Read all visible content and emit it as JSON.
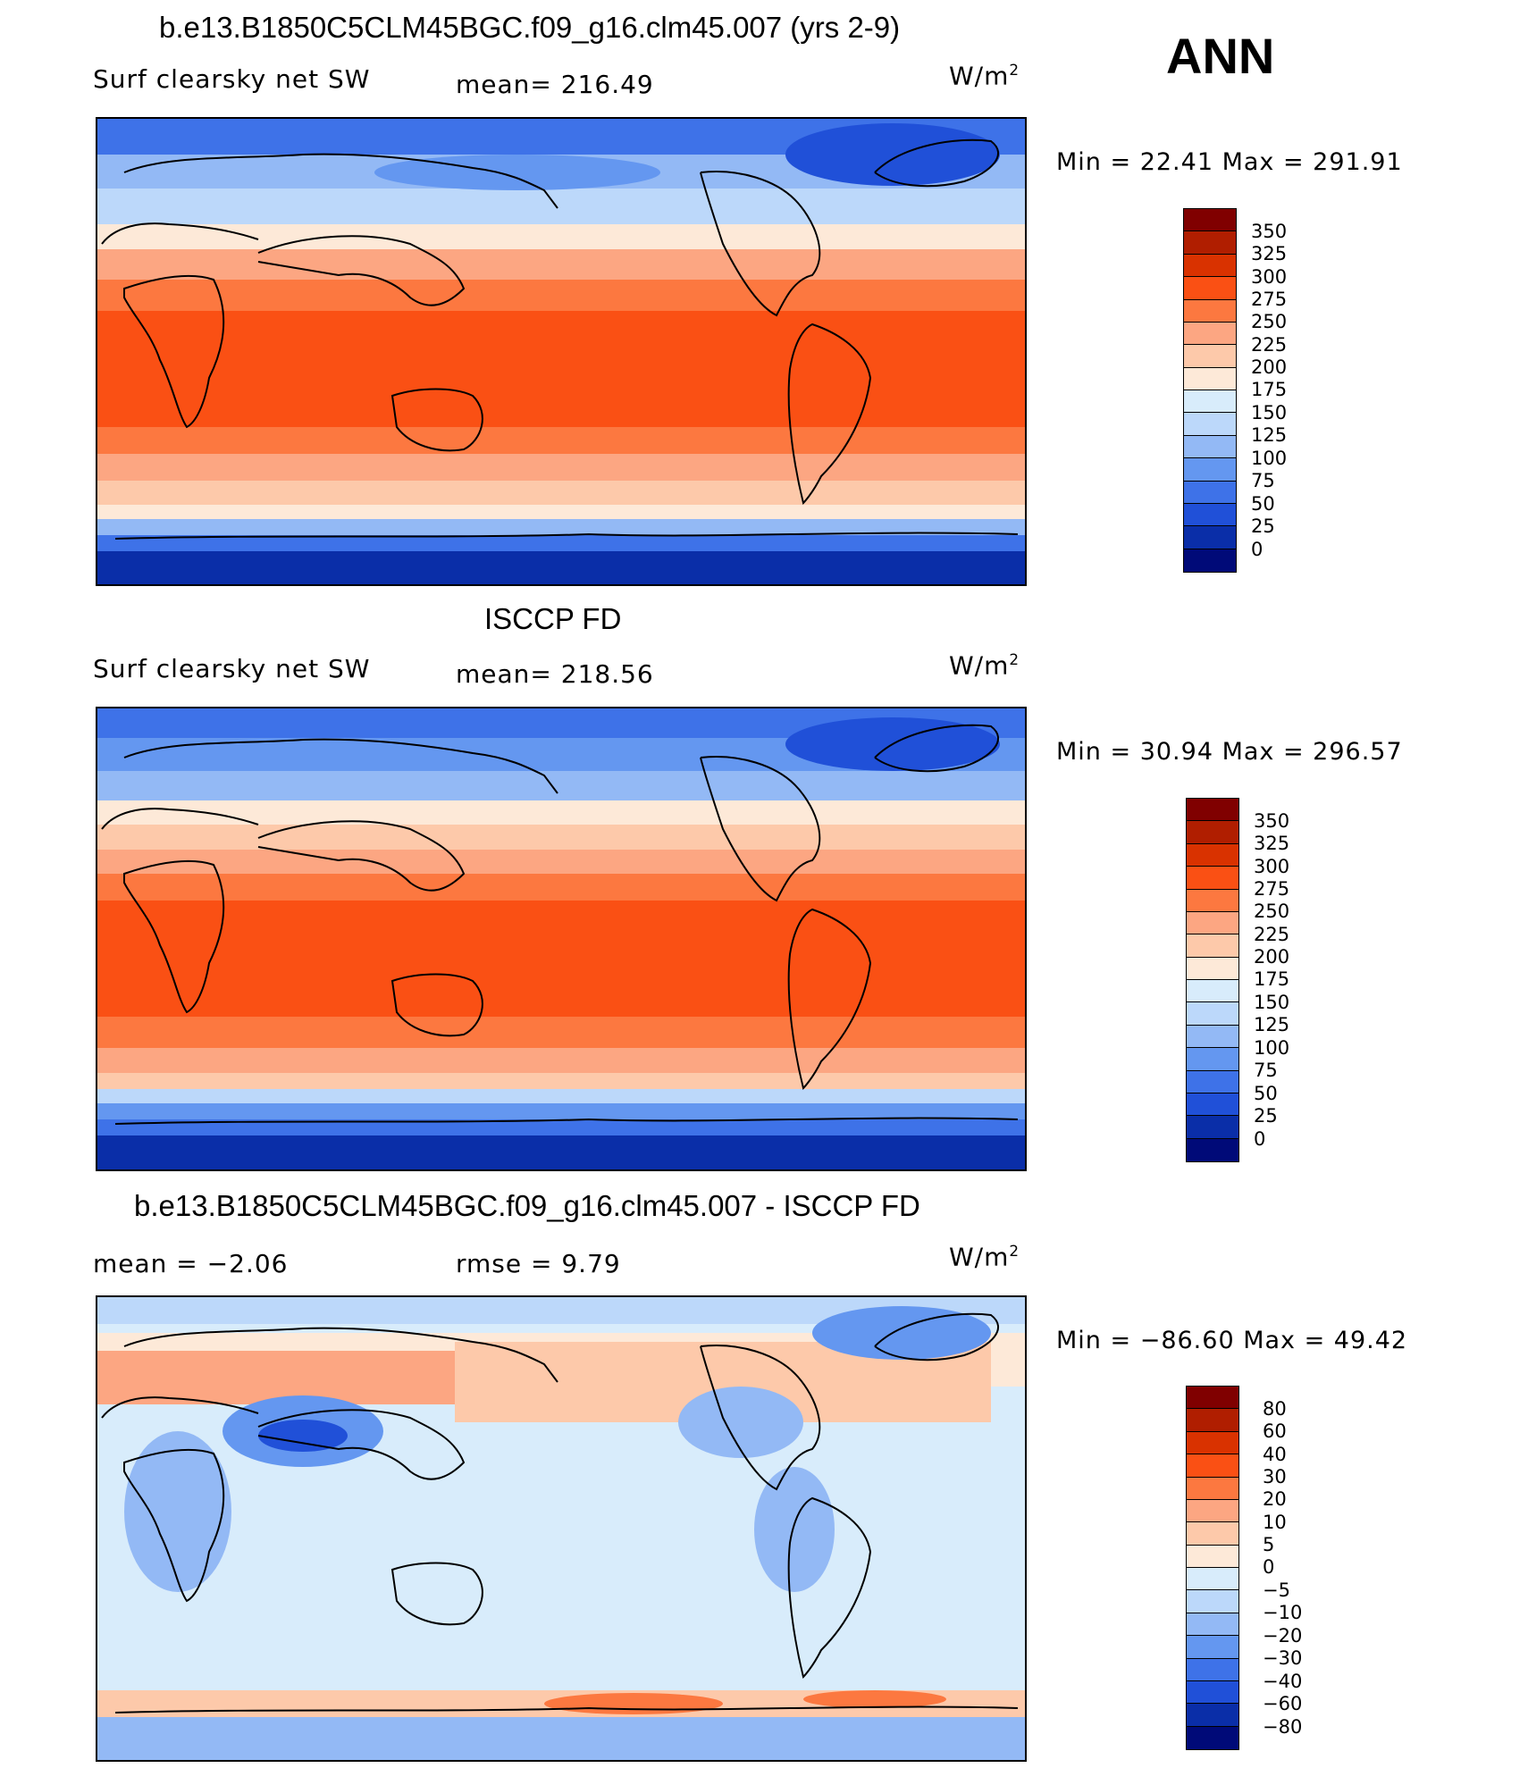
{
  "header": {
    "season": "ANN"
  },
  "panels": [
    {
      "title": "b.e13.B1850C5CLM45BGC.f09_g16.clm45.007 (yrs 2-9)",
      "left_label": "Surf clearsky net SW",
      "center_label": "mean= 216.49",
      "units": "W/m",
      "units_exp": "2",
      "minmax": "Min =    22.41  Max  =  291.91",
      "colorbar_labels": [
        "350",
        "325",
        "300",
        "275",
        "250",
        "225",
        "200",
        "175",
        "150",
        "125",
        "100",
        "75",
        "50",
        "25",
        "0"
      ]
    },
    {
      "title": "ISCCP FD",
      "left_label": "Surf clearsky net SW",
      "center_label": "mean= 218.56",
      "units": "W/m",
      "units_exp": "2",
      "minmax": "Min =    30.94  Max  =  296.57",
      "colorbar_labels": [
        "350",
        "325",
        "300",
        "275",
        "250",
        "225",
        "200",
        "175",
        "150",
        "125",
        "100",
        "75",
        "50",
        "25",
        "0"
      ]
    },
    {
      "title": "b.e13.B1850C5CLM45BGC.f09_g16.clm45.007 - ISCCP FD",
      "left_label": "mean  =    −2.06",
      "center_label": "rmse  =     9.79",
      "units": "W/m",
      "units_exp": "2",
      "minmax": "Min  = −86.60  Max  =    49.42",
      "colorbar_labels": [
        "80",
        "60",
        "40",
        "30",
        "20",
        "10",
        "5",
        "0",
        "−5",
        "−10",
        "−20",
        "−30",
        "−40",
        "−60",
        "−80"
      ]
    }
  ],
  "colors": {
    "abs_scale": [
      "#800000",
      "#b01e00",
      "#d93200",
      "#fa5014",
      "#fc7840",
      "#fca682",
      "#fdc9aa",
      "#fde9d8",
      "#d8ecfb",
      "#bcd8fa",
      "#93b9f5",
      "#6497f0",
      "#3e72e8",
      "#2050d8",
      "#0a2ea8",
      "#000a78"
    ],
    "diff_scale": [
      "#800000",
      "#b01e00",
      "#d93200",
      "#fa5014",
      "#fc7840",
      "#fca682",
      "#fdc9aa",
      "#fde9d8",
      "#d8ecfb",
      "#bcd8fa",
      "#93b9f5",
      "#6497f0",
      "#3e72e8",
      "#2050d8",
      "#0a2ea8",
      "#000a78"
    ]
  }
}
